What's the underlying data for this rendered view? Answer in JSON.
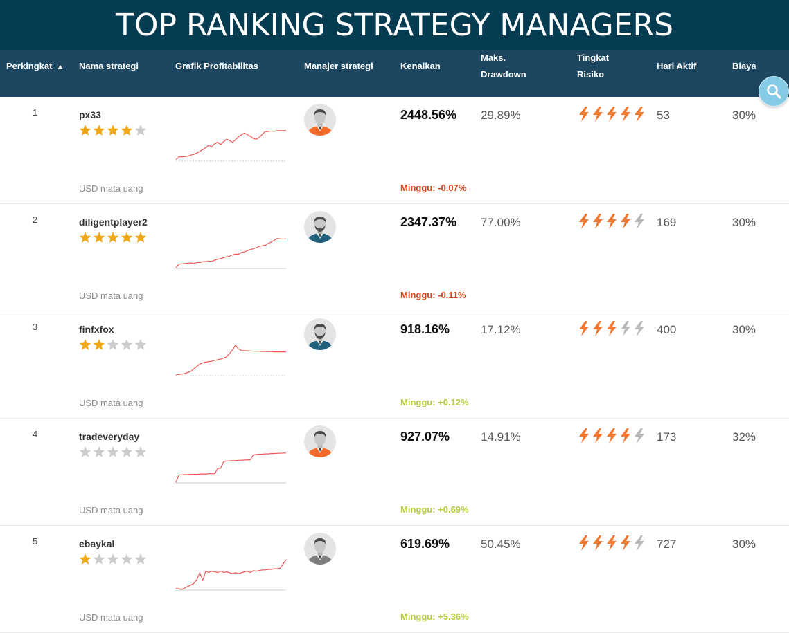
{
  "banner": {
    "title": "TOP RANKING STRATEGY MANAGERS"
  },
  "header": {
    "rank": "Perkingkat",
    "rank_sort_indicator": "▲",
    "name": "Nama strategi",
    "chart": "Grafik Profitabilitas",
    "manager": "Manajer strategi",
    "gain": "Kenaikan",
    "drawdown_line1": "Maks.",
    "drawdown_line2": "Drawdown",
    "risk_line1": "Tingkat",
    "risk_line2": "Risiko",
    "days": "Hari Aktif",
    "fee": "Biaya"
  },
  "search": {
    "icon": "magnifier-icon"
  },
  "colors": {
    "banner_bg": "#063c52",
    "header_bg": "#1d4761",
    "star_filled": "#f0a818",
    "star_empty": "#cccccc",
    "bolt_filled": "#f07a32",
    "bolt_empty": "#b8b8b8",
    "week_negative": "#d9421a",
    "week_positive": "#b5cc3b",
    "spark_line": "#ee5555",
    "spark_baseline": "#cccccc"
  },
  "rows": [
    {
      "rank": "1",
      "name": "px33",
      "stars": 4,
      "currency": "USD mata uang",
      "avatar": {
        "shirt": "#f26b2a",
        "beard": false
      },
      "gain": "2448.56%",
      "week": "Minggu: -0.07%",
      "week_sign": "negative",
      "drawdown": "29.89%",
      "risk": 5,
      "days": "53",
      "fee": "30%",
      "spark": [
        0.02,
        0.12,
        0.12,
        0.13,
        0.14,
        0.18,
        0.2,
        0.24,
        0.3,
        0.36,
        0.42,
        0.5,
        0.45,
        0.55,
        0.6,
        0.52,
        0.62,
        0.7,
        0.66,
        0.6,
        0.68,
        0.78,
        0.84,
        0.9,
        0.85,
        0.8,
        0.72,
        0.7,
        0.76,
        0.86,
        0.95,
        0.95,
        0.97,
        0.96,
        0.98,
        0.98,
        0.98,
        0.98
      ],
      "spark_baseline": "dotted"
    },
    {
      "rank": "2",
      "name": "diligentplayer2",
      "stars": 5,
      "currency": "USD mata uang",
      "avatar": {
        "shirt": "#1f5f7a",
        "beard": true
      },
      "gain": "2347.37%",
      "week": "Minggu: -0.11%",
      "week_sign": "negative",
      "drawdown": "77.00%",
      "risk": 4,
      "days": "169",
      "fee": "30%",
      "spark": [
        0.0,
        0.12,
        0.13,
        0.14,
        0.15,
        0.16,
        0.14,
        0.18,
        0.17,
        0.2,
        0.2,
        0.22,
        0.21,
        0.25,
        0.28,
        0.3,
        0.33,
        0.36,
        0.38,
        0.42,
        0.45,
        0.44,
        0.5,
        0.52,
        0.56,
        0.6,
        0.62,
        0.66,
        0.7,
        0.72,
        0.74,
        0.8,
        0.84,
        0.9,
        0.96,
        0.95,
        0.94,
        0.95
      ],
      "spark_baseline": "solid"
    },
    {
      "rank": "3",
      "name": "finfxfox",
      "stars": 2,
      "currency": "USD mata uang",
      "avatar": {
        "shirt": "#1f5f7a",
        "beard": true
      },
      "gain": "918.16%",
      "week": "Minggu: +0.12%",
      "week_sign": "positive",
      "drawdown": "17.12%",
      "risk": 3,
      "days": "400",
      "fee": "30%",
      "spark": [
        0.0,
        0.02,
        0.03,
        0.05,
        0.08,
        0.12,
        0.2,
        0.28,
        0.36,
        0.4,
        0.42,
        0.44,
        0.45,
        0.48,
        0.5,
        0.52,
        0.55,
        0.6,
        0.7,
        0.82,
        0.98,
        0.86,
        0.8,
        0.8,
        0.79,
        0.79,
        0.78,
        0.78,
        0.78,
        0.77,
        0.77,
        0.77,
        0.77,
        0.76,
        0.76,
        0.76,
        0.76,
        0.76
      ],
      "spark_baseline": "dotted"
    },
    {
      "rank": "4",
      "name": "tradeveryday",
      "stars": 0,
      "currency": "USD mata uang",
      "avatar": {
        "shirt": "#f26b2a",
        "beard": false
      },
      "gain": "927.07%",
      "week": "Minggu: +0.69%",
      "week_sign": "positive",
      "drawdown": "14.91%",
      "risk": 4,
      "days": "173",
      "fee": "32%",
      "spark": [
        0.0,
        0.24,
        0.24,
        0.25,
        0.25,
        0.26,
        0.26,
        0.26,
        0.27,
        0.27,
        0.27,
        0.28,
        0.28,
        0.28,
        0.45,
        0.46,
        0.68,
        0.7,
        0.7,
        0.71,
        0.71,
        0.72,
        0.72,
        0.73,
        0.73,
        0.74,
        0.9,
        0.91,
        0.92,
        0.92,
        0.93,
        0.93,
        0.94,
        0.94,
        0.95,
        0.95,
        0.96,
        0.96
      ],
      "spark_baseline": "solid"
    },
    {
      "rank": "5",
      "name": "ebaykal",
      "stars": 1,
      "currency": "USD mata uang",
      "avatar": {
        "shirt": "#7f7f7f",
        "beard": false
      },
      "gain": "619.69%",
      "week": "Minggu: +5.36%",
      "week_sign": "positive",
      "drawdown": "50.45%",
      "risk": 4,
      "days": "727",
      "fee": "30%",
      "spark": [
        0.04,
        0.02,
        0.0,
        0.05,
        0.1,
        0.14,
        0.2,
        0.32,
        0.55,
        0.3,
        0.6,
        0.56,
        0.6,
        0.58,
        0.56,
        0.6,
        0.56,
        0.58,
        0.55,
        0.52,
        0.55,
        0.52,
        0.55,
        0.58,
        0.6,
        0.56,
        0.62,
        0.6,
        0.62,
        0.64,
        0.64,
        0.66,
        0.66,
        0.68,
        0.68,
        0.7,
        0.84,
        0.98
      ],
      "spark_baseline": "solid"
    }
  ]
}
